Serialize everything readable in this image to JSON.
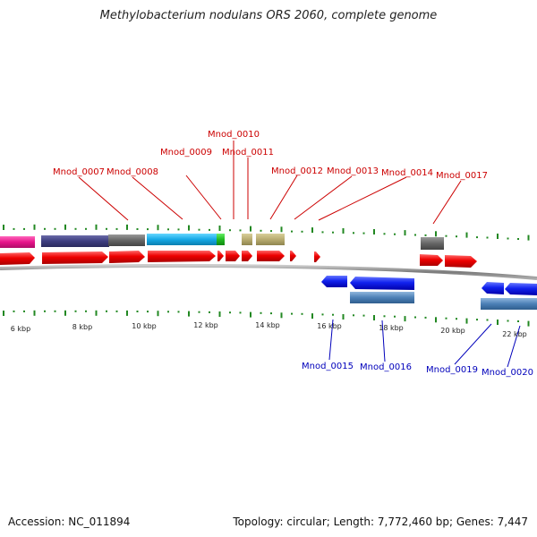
{
  "title": "Methylobacterium nodulans ORS 2060, complete genome",
  "accession": "Accession: NC_011894",
  "topology": "Topology: circular; Length: 7,772,460 bp; Genes: 7,447",
  "scale_labels": [
    "6 kbp",
    "8 kbp",
    "10 kbp",
    "12 kbp",
    "14 kbp",
    "16 kbp",
    "18 kbp",
    "20 kbp",
    "22 kbp"
  ],
  "gene_labels": {
    "forward": [
      "Mnod_0007",
      "Mnod_0008",
      "Mnod_0009",
      "Mnod_0010",
      "Mnod_0011",
      "Mnod_0012",
      "Mnod_0013",
      "Mnod_0014",
      "Mnod_0017"
    ],
    "reverse": [
      "Mnod_0015",
      "Mnod_0016",
      "Mnod_0019",
      "Mnod_0020"
    ]
  },
  "colors": {
    "forward_label": "#cc0000",
    "reverse_label": "#0000bb",
    "forward_gene": "#ee1111",
    "reverse_gene": "#1133ee",
    "backbone": "#888888",
    "ticks": "#228822"
  }
}
